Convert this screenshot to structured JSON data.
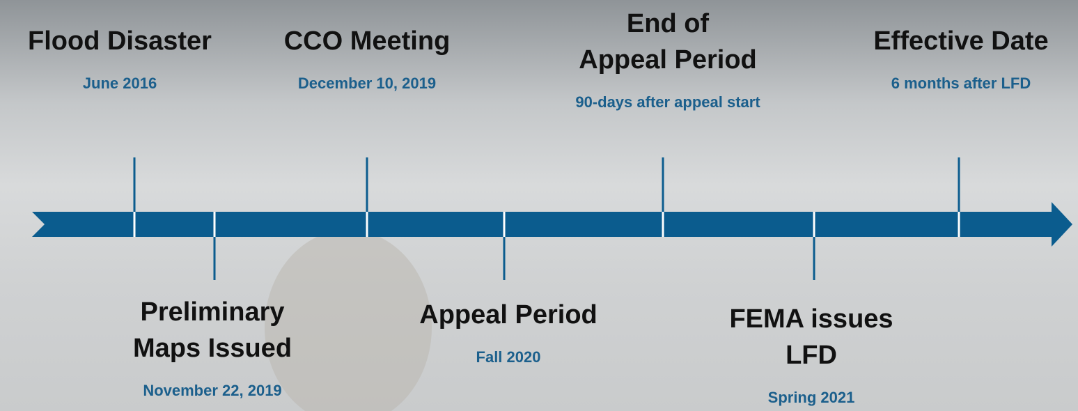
{
  "above": [
    {
      "title_lines": [
        "Flood Disaster"
      ],
      "date": "June 2016"
    },
    {
      "title_lines": [
        "CCO Meeting"
      ],
      "date": "December 10, 2019"
    },
    {
      "title_lines": [
        "End of",
        "Appeal Period"
      ],
      "date": "90-days after appeal start"
    },
    {
      "title_lines": [
        "Effective Date"
      ],
      "date": "6 months after LFD"
    }
  ],
  "below": [
    {
      "title_lines": [
        "Preliminary",
        "Maps Issued"
      ],
      "date": "November 22, 2019"
    },
    {
      "title_lines": [
        "Appeal Period"
      ],
      "date": "Fall 2020"
    },
    {
      "title_lines": [
        "FEMA issues",
        "LFD"
      ],
      "date": "Spring 2021"
    }
  ]
}
